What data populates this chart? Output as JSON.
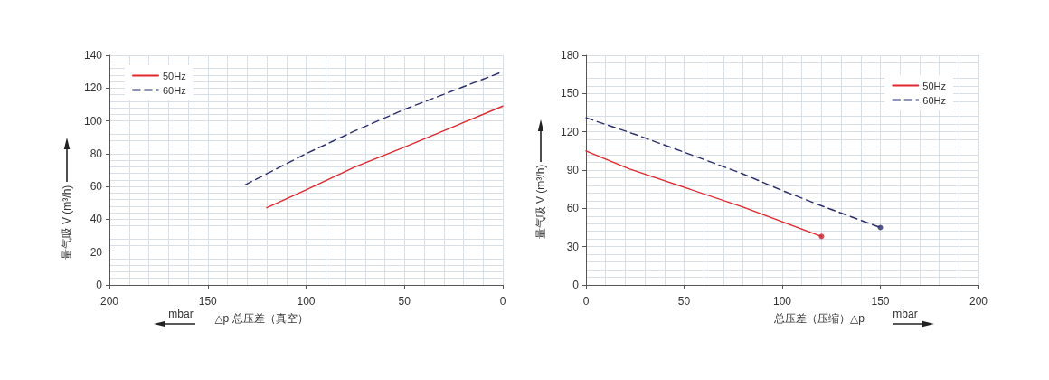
{
  "chart_data": [
    {
      "type": "line",
      "xlabel": "△p 总压差（真空）",
      "ylabel": "量气吸 V (m³/h)",
      "annotations": [
        "mbar"
      ],
      "xlim": [
        200,
        0
      ],
      "xticks": [
        200,
        150,
        100,
        50,
        0
      ],
      "ylim": [
        0,
        140
      ],
      "yticks": [
        0,
        20,
        40,
        60,
        80,
        100,
        120,
        140
      ],
      "grid": true,
      "legend": "top left",
      "line_style": "solid",
      "series": [
        {
          "name": "50Hz",
          "color": "#e0292f",
          "x": [
            120,
            100,
            75,
            50,
            0
          ],
          "values": [
            47,
            58,
            72,
            84,
            109
          ]
        },
        {
          "name": "60Hz",
          "color": "#2b2d6b",
          "line_style": "dashed",
          "x": [
            131,
            100,
            75,
            50,
            0
          ],
          "values": [
            61,
            80,
            94,
            107,
            130
          ]
        }
      ]
    },
    {
      "type": "line",
      "xlabel": "总压差（压缩）△p",
      "ylabel": "量气吸 V (m³/h)",
      "annotations": [
        "mbar"
      ],
      "xlim": [
        0,
        200
      ],
      "xticks": [
        0,
        50,
        100,
        150,
        200
      ],
      "ylim": [
        0,
        180
      ],
      "yticks": [
        0,
        30,
        60,
        90,
        120,
        150,
        180
      ],
      "grid": true,
      "legend": "top right",
      "line_style": "solid",
      "series": [
        {
          "name": "50Hz",
          "color": "#e0292f",
          "x": [
            0,
            22,
            80,
            120
          ],
          "values": [
            105,
            91,
            61,
            38
          ]
        },
        {
          "name": "60Hz",
          "color": "#2b2d6b",
          "line_style": "dashed",
          "x": [
            0,
            25,
            50,
            80,
            100,
            120,
            150
          ],
          "values": [
            131,
            118,
            104,
            87,
            74,
            62,
            45
          ]
        },
        {
          "type": "scatter",
          "color": "#c0272d",
          "marker": "circle",
          "x": [
            120
          ],
          "values": [
            38
          ]
        },
        {
          "type": "scatter",
          "color": "#2b2d6b",
          "marker": "circle",
          "x": [
            150
          ],
          "values": [
            45
          ]
        }
      ]
    }
  ]
}
